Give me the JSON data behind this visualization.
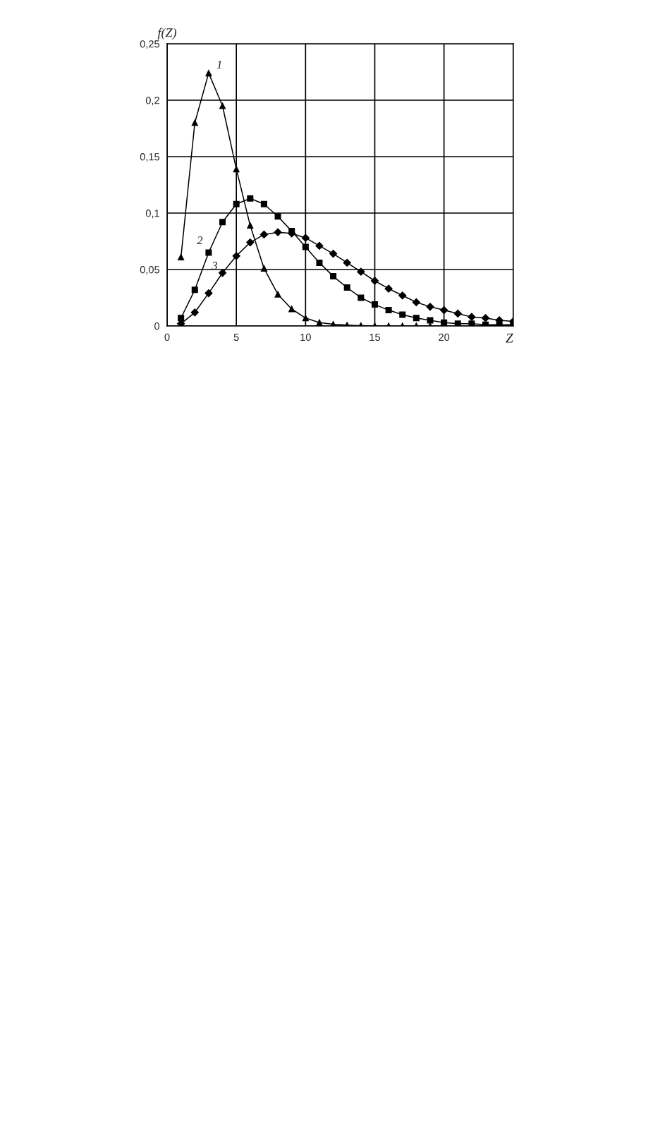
{
  "chart_data": {
    "type": "line",
    "xlabel": "Z",
    "ylabel": "f(Z)",
    "x": [
      1,
      2,
      3,
      4,
      5,
      6,
      7,
      8,
      9,
      10,
      11,
      12,
      13,
      14,
      15,
      16,
      17,
      18,
      19,
      20,
      21,
      22,
      23,
      24,
      25
    ],
    "series": [
      {
        "name": "1",
        "color": "#000000",
        "marker": "triangle",
        "values": [
          0.061,
          0.18,
          0.224,
          0.195,
          0.139,
          0.089,
          0.051,
          0.028,
          0.015,
          0.007,
          0.003,
          0.0015,
          0.0007,
          0.0003,
          0.0001,
          0,
          0,
          0,
          0,
          0,
          0,
          0,
          0,
          0,
          0
        ]
      },
      {
        "name": "2",
        "color": "#000000",
        "marker": "square",
        "values": [
          0.007,
          0.032,
          0.065,
          0.092,
          0.108,
          0.113,
          0.108,
          0.097,
          0.084,
          0.07,
          0.056,
          0.044,
          0.034,
          0.025,
          0.019,
          0.014,
          0.01,
          0.007,
          0.005,
          0.003,
          0.002,
          0.002,
          0.001,
          0.001,
          0.001
        ]
      },
      {
        "name": "3",
        "color": "#000000",
        "marker": "diamond",
        "values": [
          0.002,
          0.012,
          0.029,
          0.047,
          0.062,
          0.074,
          0.081,
          0.083,
          0.082,
          0.078,
          0.071,
          0.064,
          0.056,
          0.048,
          0.04,
          0.033,
          0.027,
          0.021,
          0.017,
          0.014,
          0.011,
          0.008,
          0.007,
          0.005,
          0.004
        ]
      }
    ],
    "xlim": [
      0,
      25
    ],
    "xticks": [
      0,
      5,
      10,
      15,
      20
    ],
    "ylim": [
      0,
      0.25
    ],
    "yticks": [
      0,
      {
        "value": 0.05,
        "label": "0,05"
      },
      {
        "value": 0.1,
        "label": "0,1"
      },
      {
        "value": 0.15,
        "label": "0,15"
      },
      {
        "value": 0.2,
        "label": "0,2"
      },
      {
        "value": 0.25,
        "label": "0,25"
      }
    ],
    "grid": true,
    "line_style": "solid"
  }
}
